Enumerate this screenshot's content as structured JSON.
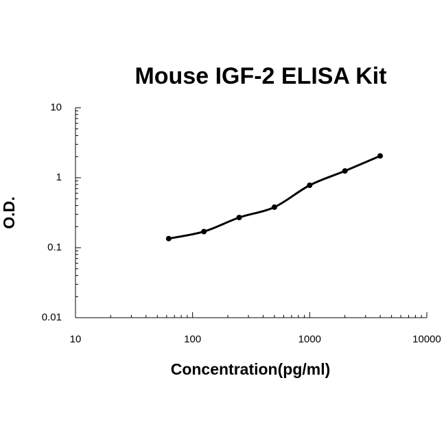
{
  "chart_data": {
    "type": "scatter",
    "title": "Mouse IGF-2 ELISA Kit",
    "x_label": "Concentration(pg/ml)",
    "y_label": "O.D.",
    "x": [
      62.5,
      125,
      250,
      500,
      1000,
      2000,
      4000
    ],
    "values": [
      0.135,
      0.17,
      0.27,
      0.38,
      0.78,
      1.25,
      2.05
    ],
    "color": "#000000",
    "fit_line": true,
    "log_x": true,
    "log_y": true,
    "xlim": [
      10,
      10000
    ],
    "xticks": [
      10,
      100,
      1000,
      10000
    ],
    "ylim": [
      0.01,
      10
    ],
    "yticks": [
      0.01,
      0.1,
      1,
      10
    ]
  }
}
